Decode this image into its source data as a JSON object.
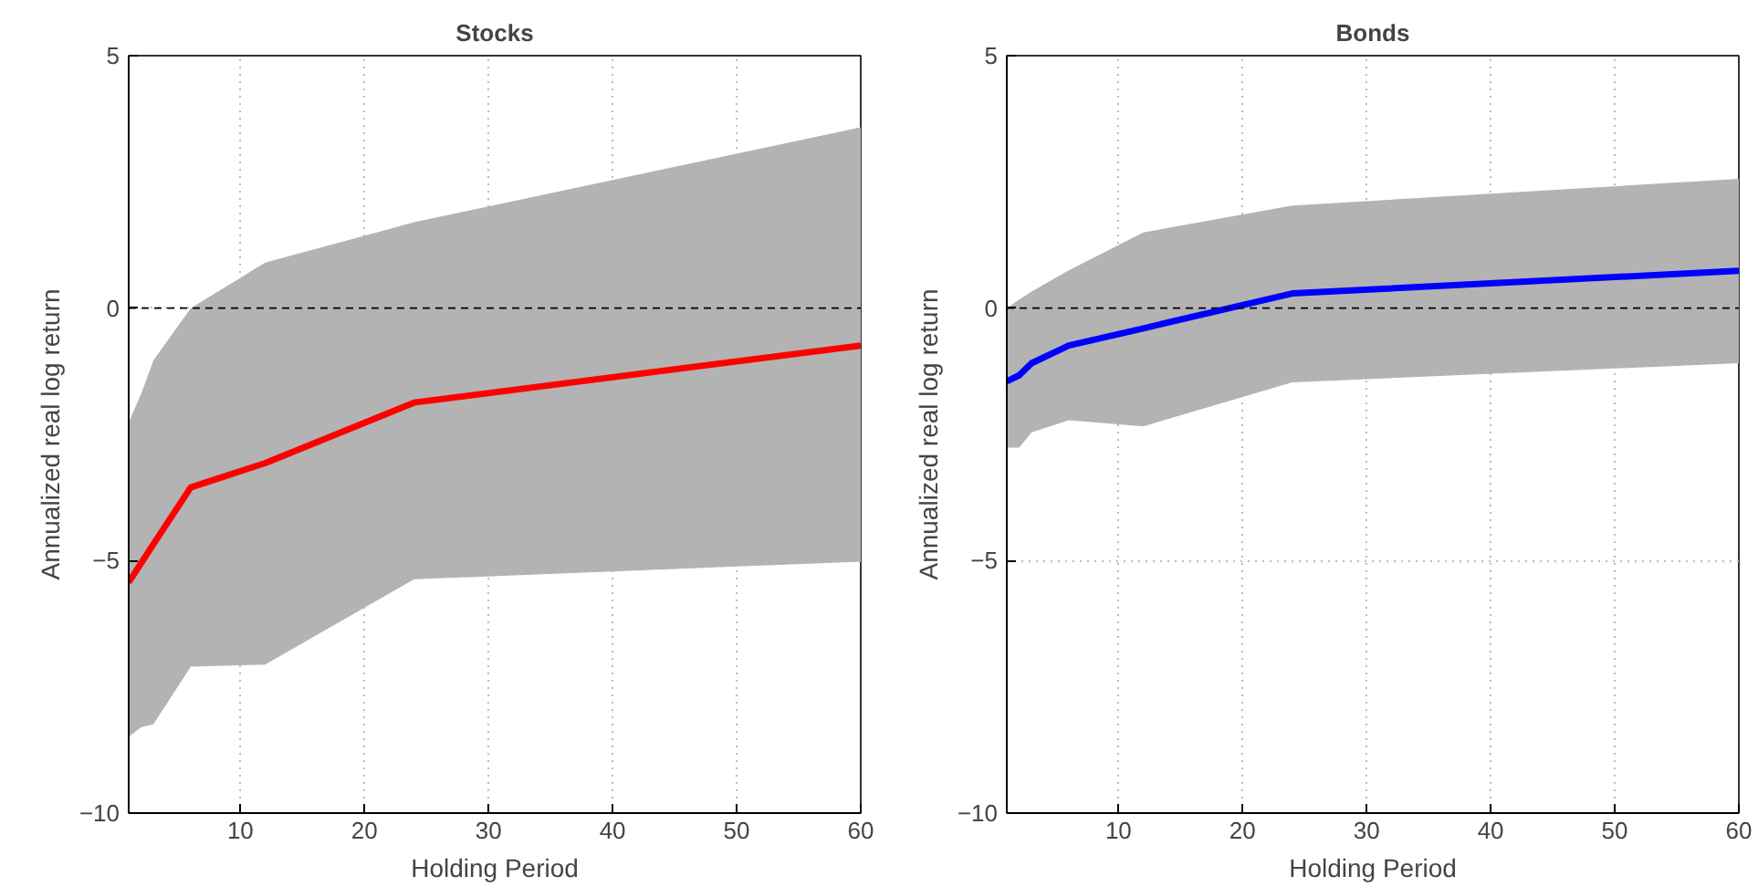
{
  "chart_data": [
    {
      "type": "line",
      "title": "Stocks",
      "xlabel": "Holding Period",
      "ylabel": "Annualized real log return",
      "x": [
        1,
        2,
        3,
        6,
        12,
        24,
        60
      ],
      "xlim": [
        1,
        60
      ],
      "ylim": [
        -10,
        5
      ],
      "xticks": [
        10,
        20,
        30,
        40,
        50,
        60
      ],
      "yticks": [
        -10,
        -5,
        0,
        5
      ],
      "grid": true,
      "line_style": "solid",
      "marker": "none",
      "series": [
        {
          "color": "#ff0000",
          "values": [
            -5.43,
            -5.05,
            -4.67,
            -3.55,
            -3.07,
            -1.87,
            -0.74
          ],
          "upper": [
            -2.26,
            -1.7,
            -1.03,
            0,
            0.9,
            1.7,
            3.58
          ],
          "lower": [
            -8.49,
            -8.3,
            -8.24,
            -7.1,
            -7.06,
            -5.37,
            -5.02
          ]
        }
      ],
      "ref_lines": [
        {
          "axis": "y",
          "value": 0,
          "color": "#000000",
          "line_style": "dashed"
        }
      ]
    },
    {
      "type": "line",
      "title": "Bonds",
      "xlabel": "Holding Period",
      "ylabel": "Annualized real log return",
      "x": [
        1,
        2,
        3,
        6,
        12,
        24,
        60
      ],
      "xlim": [
        1,
        60
      ],
      "ylim": [
        -10,
        5
      ],
      "xticks": [
        10,
        20,
        30,
        40,
        50,
        60
      ],
      "yticks": [
        -10,
        -5,
        0,
        5
      ],
      "grid": true,
      "line_style": "solid",
      "marker": "none",
      "series": [
        {
          "color": "#0000ff",
          "values": [
            -1.45,
            -1.33,
            -1.09,
            -0.74,
            -0.4,
            0.29,
            0.74
          ],
          "upper": [
            0,
            0.17,
            0.33,
            0.75,
            1.5,
            2.03,
            2.56
          ],
          "lower": [
            -2.76,
            -2.76,
            -2.46,
            -2.22,
            -2.34,
            -1.47,
            -1.09
          ]
        }
      ],
      "ref_lines": [
        {
          "axis": "y",
          "value": 0,
          "color": "#000000",
          "line_style": "dashed"
        }
      ]
    }
  ]
}
